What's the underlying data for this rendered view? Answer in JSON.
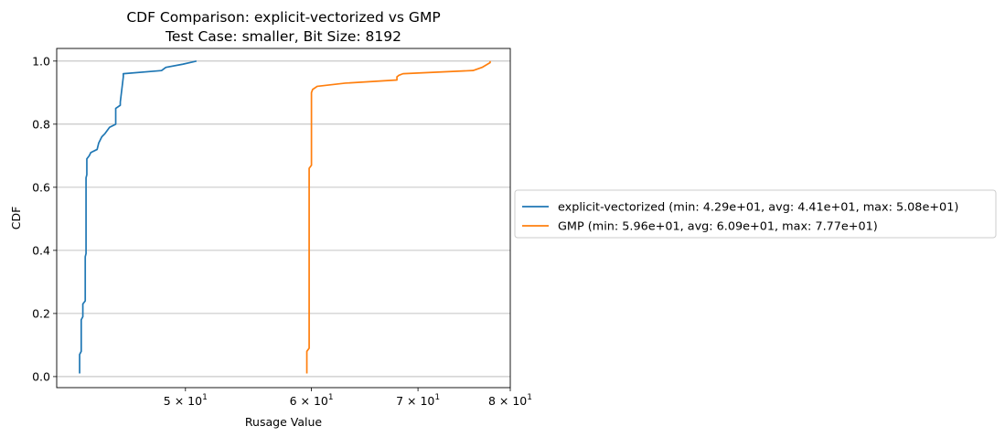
{
  "chart_data": {
    "type": "line",
    "title": "CDF Comparison: explicit-vectorized vs GMP",
    "subtitle": "Test Case: smaller, Bit Size: 8192",
    "xlabel": "Rusage Value",
    "ylabel": "CDF",
    "x_scale": "log",
    "xlim": [
      41.5,
      80
    ],
    "ylim": [
      -0.035,
      1.04
    ],
    "grid": "y",
    "legend_position": "right",
    "x_ticks": [
      {
        "value": 50,
        "label": "5 × 10^1",
        "mantissa": "5",
        "exponent": "1"
      },
      {
        "value": 60,
        "label": "6 × 10^1",
        "mantissa": "6",
        "exponent": "1"
      },
      {
        "value": 70,
        "label": "7 × 10^1",
        "mantissa": "7",
        "exponent": "1"
      },
      {
        "value": 80,
        "label": "8 × 10^1",
        "mantissa": "8",
        "exponent": "1"
      }
    ],
    "y_ticks": [
      {
        "value": 0.0,
        "label": "0.0"
      },
      {
        "value": 0.2,
        "label": "0.2"
      },
      {
        "value": 0.4,
        "label": "0.4"
      },
      {
        "value": 0.6,
        "label": "0.6"
      },
      {
        "value": 0.8,
        "label": "0.8"
      },
      {
        "value": 1.0,
        "label": "1.0"
      }
    ],
    "series": [
      {
        "name": "explicit-vectorized (min: 4.29e+01, avg: 4.41e+01, max: 5.08e+01)",
        "color": "#1f77b4",
        "x": [
          42.9,
          42.9,
          43.0,
          43.0,
          43.1,
          43.1,
          43.25,
          43.25,
          43.3,
          43.3,
          43.35,
          43.35,
          43.5,
          43.6,
          44.0,
          44.1,
          44.3,
          44.5,
          44.8,
          45.2,
          45.2,
          45.5,
          45.5,
          45.7,
          45.7,
          48.3,
          48.6,
          49.8,
          50.3,
          50.8
        ],
        "y": [
          0.01,
          0.07,
          0.08,
          0.18,
          0.19,
          0.23,
          0.24,
          0.38,
          0.39,
          0.63,
          0.64,
          0.69,
          0.7,
          0.71,
          0.72,
          0.74,
          0.76,
          0.77,
          0.79,
          0.8,
          0.85,
          0.86,
          0.87,
          0.95,
          0.96,
          0.97,
          0.98,
          0.99,
          0.995,
          1.0
        ]
      },
      {
        "name": "GMP (min: 5.96e+01, avg: 6.09e+01, max: 7.77e+01)",
        "color": "#ff7f0e",
        "x": [
          59.6,
          59.6,
          59.8,
          59.8,
          60.0,
          60.0,
          60.1,
          60.1,
          60.5,
          63.0,
          67.9,
          67.9,
          68.1,
          68.5,
          75.8,
          76.8,
          77.4,
          77.7,
          77.7
        ],
        "y": [
          0.01,
          0.08,
          0.09,
          0.66,
          0.67,
          0.9,
          0.91,
          0.91,
          0.92,
          0.93,
          0.94,
          0.95,
          0.955,
          0.96,
          0.97,
          0.98,
          0.99,
          0.995,
          1.0
        ]
      }
    ]
  }
}
